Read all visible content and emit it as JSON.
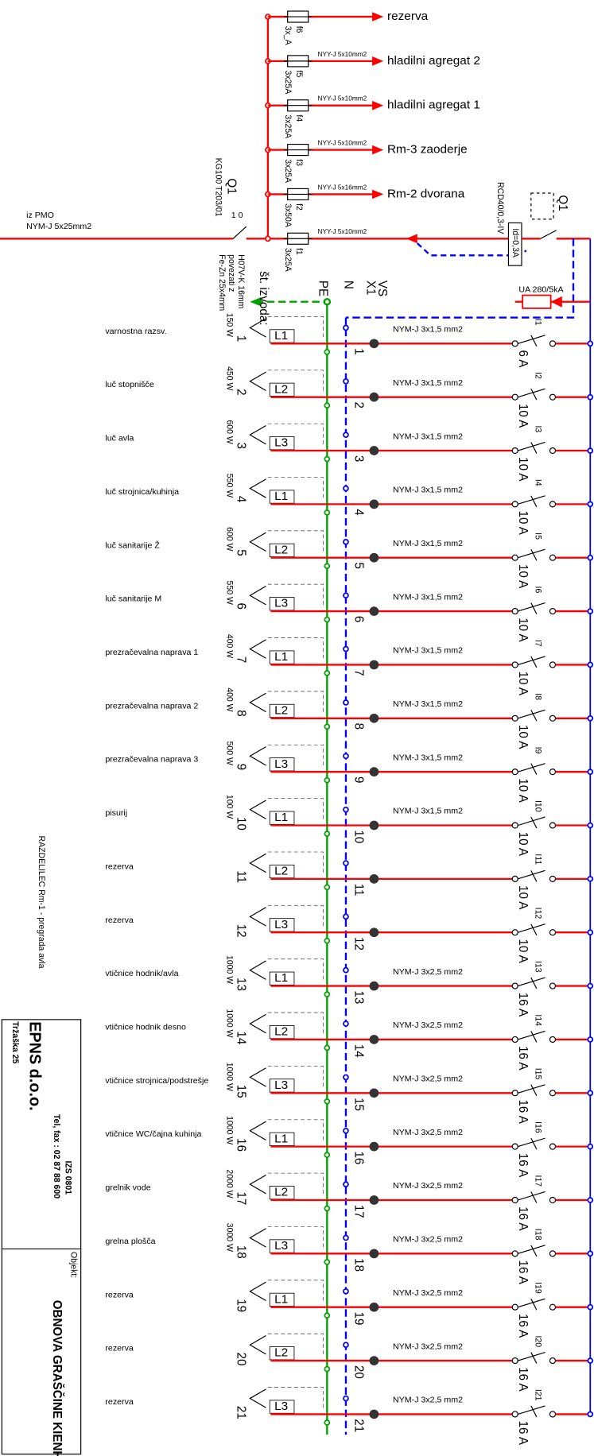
{
  "supply": {
    "from": "iz PMO",
    "cable": "NYM-J 5x25mm2"
  },
  "main_switch": {
    "name": "Q1",
    "type": "KG100 T203/01",
    "positions": "1 0",
    "pe_note": [
      "H07V-K 16mm",
      "povezati z",
      "Fe-Zn 25x4mm"
    ]
  },
  "rcd": {
    "name": "Q1",
    "type": "RCD40/0,3-IV",
    "trip": "Id=0,3A"
  },
  "surge": "UA 280/5kA",
  "bus": {
    "labels": [
      "VS",
      "X1",
      "N",
      "PE"
    ],
    "outlet_header": "št. izvoda:"
  },
  "feeders": [
    {
      "fuse": "f6",
      "rating": "3x_A",
      "destination": "rezerva"
    },
    {
      "fuse": "f5",
      "rating": "3x25A",
      "cable": "NYY-J 5x10mm2",
      "destination": "hladilni agregat 2"
    },
    {
      "fuse": "f4",
      "rating": "3x25A",
      "cable": "NYY-J 5x10mm2",
      "destination": "hladilni agregat  1"
    },
    {
      "fuse": "f3",
      "rating": "3x25A",
      "cable": "NYY-J 5x10mm2",
      "destination": "Rm-3 zaoderje"
    },
    {
      "fuse": "f2",
      "rating": "3x50A",
      "cable": "NYY-J 5x16mm2",
      "destination": "Rm-2 dvorana"
    },
    {
      "fuse": "f1",
      "rating": "3x25A",
      "cable": "NYY-J 5x10mm2"
    }
  ],
  "circuits": [
    {
      "number": "1",
      "name": "varnostna razsv.",
      "power": "150 W",
      "phase": "L1",
      "cable": "NYM-J 3x1,5 mm2",
      "breaker": "I1",
      "rating": "6 A"
    },
    {
      "number": "2",
      "name": "luč stopnišče",
      "power": "450 W",
      "phase": "L2",
      "cable": "NYM-J 3x1,5 mm2",
      "breaker": "I2",
      "rating": "10 A"
    },
    {
      "number": "3",
      "name": "luč avla",
      "power": "600 W",
      "phase": "L3",
      "cable": "NYM-J 3x1,5 mm2",
      "breaker": "I3",
      "rating": "10 A"
    },
    {
      "number": "4",
      "name": "luč strojnica/kuhinja",
      "power": "550 W",
      "phase": "L1",
      "cable": "NYM-J 3x1,5 mm2",
      "breaker": "I4",
      "rating": "10 A"
    },
    {
      "number": "5",
      "name": "luč sanitarije Ž",
      "power": "600 W",
      "phase": "L2",
      "cable": "NYM-J 3x1,5 mm2",
      "breaker": "I5",
      "rating": "10 A"
    },
    {
      "number": "6",
      "name": "luč sanitarije M",
      "power": "550 W",
      "phase": "L3",
      "cable": "NYM-J 3x1,5 mm2",
      "breaker": "I6",
      "rating": "10 A"
    },
    {
      "number": "7",
      "name": "prezračevalna naprava 1",
      "power": "400 W",
      "phase": "L1",
      "cable": "NYM-J 3x1,5 mm2",
      "breaker": "I7",
      "rating": "10 A"
    },
    {
      "number": "8",
      "name": "prezračevalna naprava 2",
      "power": "400 W",
      "phase": "L2",
      "cable": "NYM-J 3x1,5 mm2",
      "breaker": "I8",
      "rating": "10 A"
    },
    {
      "number": "9",
      "name": "prezračevalna naprava 3",
      "power": "500 W",
      "phase": "L3",
      "cable": "NYM-J 3x1,5 mm2",
      "breaker": "I9",
      "rating": "10 A"
    },
    {
      "number": "10",
      "name": "pisurij",
      "power": "100 W",
      "phase": "L1",
      "cable": "NYM-J 3x1,5 mm2",
      "breaker": "I10",
      "rating": "10 A"
    },
    {
      "number": "11",
      "name": "rezerva",
      "phase": "L2",
      "breaker": "I11",
      "rating": "10 A"
    },
    {
      "number": "12",
      "name": "rezerva",
      "phase": "L3",
      "breaker": "I12",
      "rating": "10 A"
    },
    {
      "number": "13",
      "name": "vtičnice hodnik/avla",
      "power": "1000 W",
      "phase": "L1",
      "cable": "NYM-J 3x2,5 mm2",
      "breaker": "I13",
      "rating": "16 A"
    },
    {
      "number": "14",
      "name": "vtičnice hodnik desno",
      "power": "1000 W",
      "phase": "L2",
      "cable": "NYM-J 3x2,5 mm2",
      "breaker": "I14",
      "rating": "16 A"
    },
    {
      "number": "15",
      "name": "vtičnice strojnica/podstrešje",
      "power": "1000 W",
      "phase": "L3",
      "cable": "NYM-J 3x2,5 mm2",
      "breaker": "I15",
      "rating": "16 A"
    },
    {
      "number": "16",
      "name": "vtičnice WC/čajna kuhinja",
      "power": "1000 W",
      "phase": "L1",
      "cable": "NYM-J 3x2,5 mm2",
      "breaker": "I16",
      "rating": "16 A"
    },
    {
      "number": "17",
      "name": "grelnik vode",
      "power": "2000 W",
      "phase": "L2",
      "cable": "NYM-J 3x2,5 mm2",
      "breaker": "I17",
      "rating": "16 A"
    },
    {
      "number": "18",
      "name": "grelna plošča",
      "power": "3000 W",
      "phase": "L3",
      "cable": "NYM-J 3x2,5 mm2",
      "breaker": "I18",
      "rating": "16 A"
    },
    {
      "number": "19",
      "name": "rezerva",
      "phase": "L1",
      "cable": "NYM-J 3x2,5 mm2",
      "breaker": "I19",
      "rating": "16 A"
    },
    {
      "number": "20",
      "name": "rezerva",
      "phase": "L2",
      "cable": "NYM-J 3x2,5 mm2",
      "breaker": "I20",
      "rating": "16 A"
    },
    {
      "number": "21",
      "name": "rezerva",
      "phase": "L3",
      "cable": "NYM-J 3x2,5 mm2",
      "breaker": "I21",
      "rating": "16 A"
    }
  ],
  "title_block": {
    "company": "EPNS d.o.o.",
    "address": "Tržaška 25",
    "phone": "Tel, fax : 02 87 88 600",
    "code": "IZS 0801",
    "object_label": "Objekt:",
    "object": "OBNOVA GRAŠČINE KIENHO",
    "drawing": "RAZDELILEC Rm-1 - pregrada avla"
  }
}
